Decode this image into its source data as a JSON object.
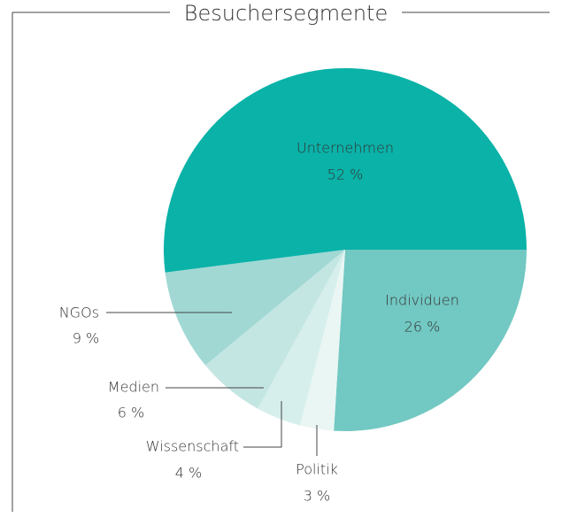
{
  "chart_data": {
    "type": "pie",
    "title": "Besuchersegmente",
    "categories": [
      "Individuen",
      "Politik",
      "Wissenschaft",
      "Medien",
      "NGOs",
      "Unternehmen"
    ],
    "values": [
      26,
      3,
      4,
      6,
      9,
      52
    ],
    "value_labels": [
      "26 %",
      "3 %",
      "4 %",
      "6 %",
      "9 %",
      "52 %"
    ],
    "colors": [
      "#72c8c2",
      "#eaf6f4",
      "#d6efec",
      "#c4e6e3",
      "#a1d8d4",
      "#0ab2a8"
    ]
  }
}
